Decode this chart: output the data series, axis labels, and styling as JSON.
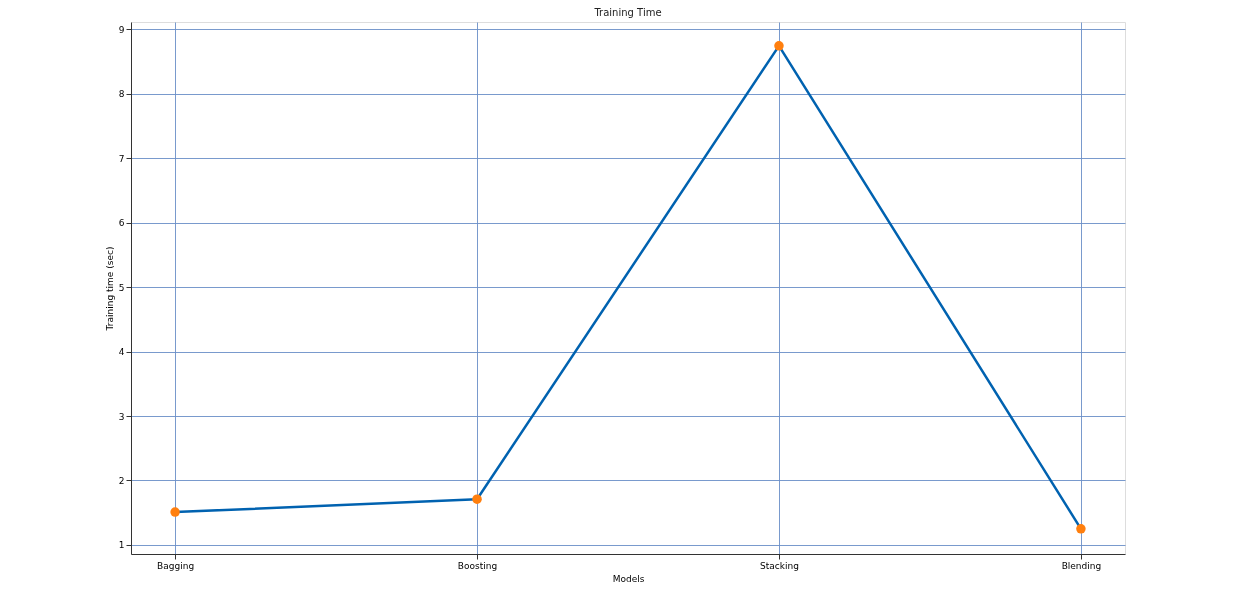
{
  "chart_data": {
    "type": "line",
    "title": "Training Time",
    "xlabel": "Models",
    "ylabel": "Training time (sec)",
    "categories": [
      "Bagging",
      "Boosting",
      "Stacking",
      "Blending"
    ],
    "series": [
      {
        "color": "#0062b0",
        "colors": [
          "#ff7f0e",
          "#ff7f0e",
          "#ff7f0e",
          "#ff7f0e"
        ],
        "values": [
          1.51,
          1.71,
          8.74,
          1.25
        ]
      }
    ],
    "ylim": [
      0.86,
      9.11
    ],
    "yticks": [
      1,
      2,
      3,
      4,
      5,
      6,
      7,
      8,
      9
    ],
    "grid": true,
    "marker": "circle",
    "line_style": "solid"
  }
}
